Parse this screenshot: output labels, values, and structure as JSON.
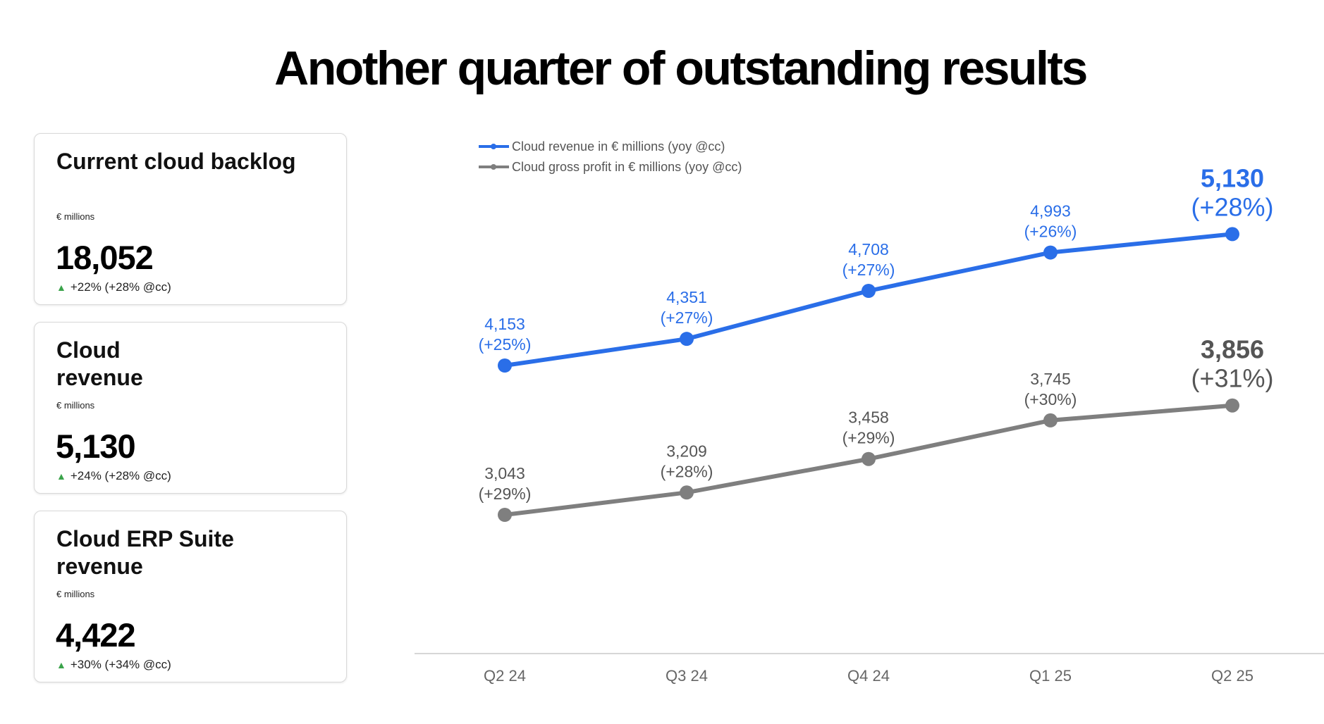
{
  "title": "Another quarter of outstanding results",
  "cards": [
    {
      "title": "Current cloud backlog",
      "unit": "€ millions",
      "value": "18,052",
      "change": "+22% (+28% @cc)"
    },
    {
      "title": "Cloud revenue",
      "unit": "€ millions",
      "value": "5,130",
      "change": "+24% (+28% @cc)"
    },
    {
      "title": "Cloud ERP Suite revenue",
      "unit": "€ millions",
      "value": "4,422",
      "change": "+30% (+34% @cc)"
    }
  ],
  "chart_data": {
    "type": "line",
    "categories": [
      "Q2 24",
      "Q3 24",
      "Q4 24",
      "Q1 25",
      "Q2 25"
    ],
    "series": [
      {
        "name": "Cloud revenue in € millions (yoy @cc)",
        "values": [
          4153,
          4351,
          4708,
          4993,
          5130
        ],
        "value_labels": [
          "4,153",
          "4,351",
          "4,708",
          "4,993",
          "5,130"
        ],
        "growth_labels": [
          "(+25%)",
          "(+27%)",
          "(+27%)",
          "(+26%)",
          "(+28%)"
        ],
        "color": "#2a6ee8"
      },
      {
        "name": "Cloud gross profit in € millions (yoy @cc)",
        "values": [
          3043,
          3209,
          3458,
          3745,
          3856
        ],
        "value_labels": [
          "3,043",
          "3,209",
          "3,458",
          "3,745",
          "3,856"
        ],
        "growth_labels": [
          "(+29%)",
          "(+28%)",
          "(+29%)",
          "(+30%)",
          "(+31%)"
        ],
        "color": "#7f7f7f"
      }
    ],
    "legend_position": "top-left",
    "grid": false
  }
}
